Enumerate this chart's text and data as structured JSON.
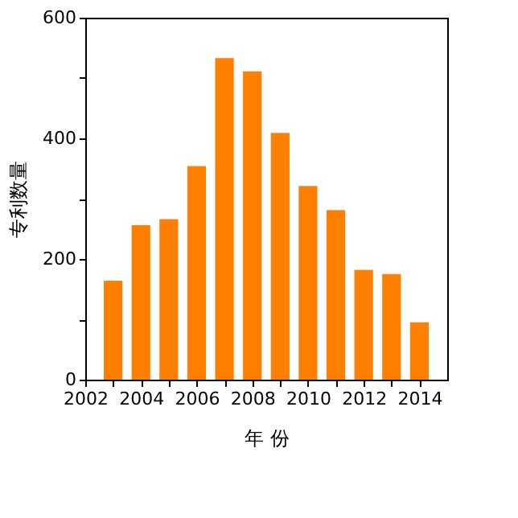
{
  "chart_data": {
    "type": "bar",
    "xlabel": "年  份",
    "ylabel": "专利数量",
    "x": [
      2003,
      2004,
      2005,
      2006,
      2007,
      2008,
      2009,
      2010,
      2011,
      2012,
      2013,
      2014
    ],
    "values": [
      164,
      256,
      266,
      354,
      533,
      511,
      409,
      321,
      281,
      182,
      175,
      95
    ],
    "color": "#ff8000",
    "xlim": [
      2002,
      2015
    ],
    "xticks": [
      2002,
      {
        "value": 2003,
        "label": null
      },
      2004,
      {
        "value": 2005,
        "label": null
      },
      2006,
      {
        "value": 2007,
        "label": null
      },
      2008,
      {
        "value": 2009,
        "label": null
      },
      2010,
      {
        "value": 2011,
        "label": null
      },
      2012,
      {
        "value": 2013,
        "label": null
      },
      2014
    ],
    "ylim": [
      0,
      600
    ],
    "yticks": [
      0,
      {
        "value": 100,
        "label": null
      },
      200,
      {
        "value": 300,
        "label": null
      },
      400,
      {
        "value": 500,
        "label": null
      },
      600
    ],
    "grid": false
  }
}
